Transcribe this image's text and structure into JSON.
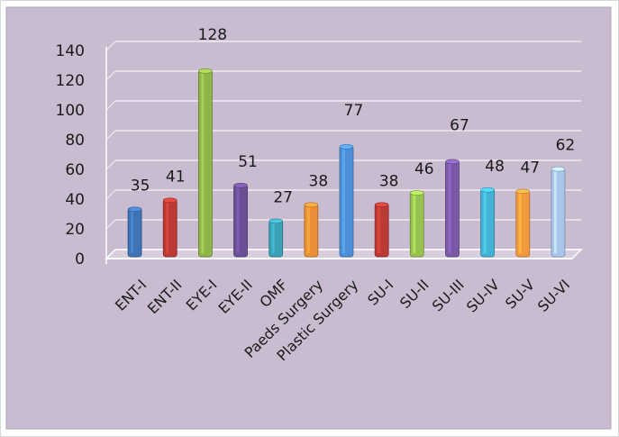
{
  "chart_data": {
    "type": "bar",
    "categories": [
      "ENT-I",
      "ENT-II",
      "EYE-I",
      "EYE-II",
      "OMF",
      "Paeds Surgery",
      "Plastic Surgery",
      "SU-I",
      "SU-II",
      "SU-III",
      "SU-IV",
      "SU-V",
      "SU-VI"
    ],
    "values": [
      35,
      41,
      128,
      51,
      27,
      38,
      77,
      38,
      46,
      67,
      48,
      47,
      62
    ],
    "data_labels": [
      "35",
      "41",
      "128",
      "51",
      "27",
      "38",
      "77",
      "38",
      "46",
      "67",
      "48",
      "47",
      "62"
    ],
    "y_ticks": [
      "0",
      "20",
      "40",
      "60",
      "80",
      "100",
      "120",
      "140"
    ],
    "ylim": [
      0,
      140
    ],
    "grid": true,
    "title": "",
    "xlabel": "",
    "ylabel": "",
    "colors": {
      "background": "#c9bcd0",
      "grid": "#efe9f1",
      "bars": [
        "#3f73b4",
        "#bb3a36",
        "#8fb44a",
        "#6b4f95",
        "#3aa0b6",
        "#e98e35",
        "#4d8fd6",
        "#bb3a36",
        "#98c24f",
        "#7a5aa6",
        "#43b2d4",
        "#f19a3d",
        "#a9c6ea"
      ]
    }
  }
}
